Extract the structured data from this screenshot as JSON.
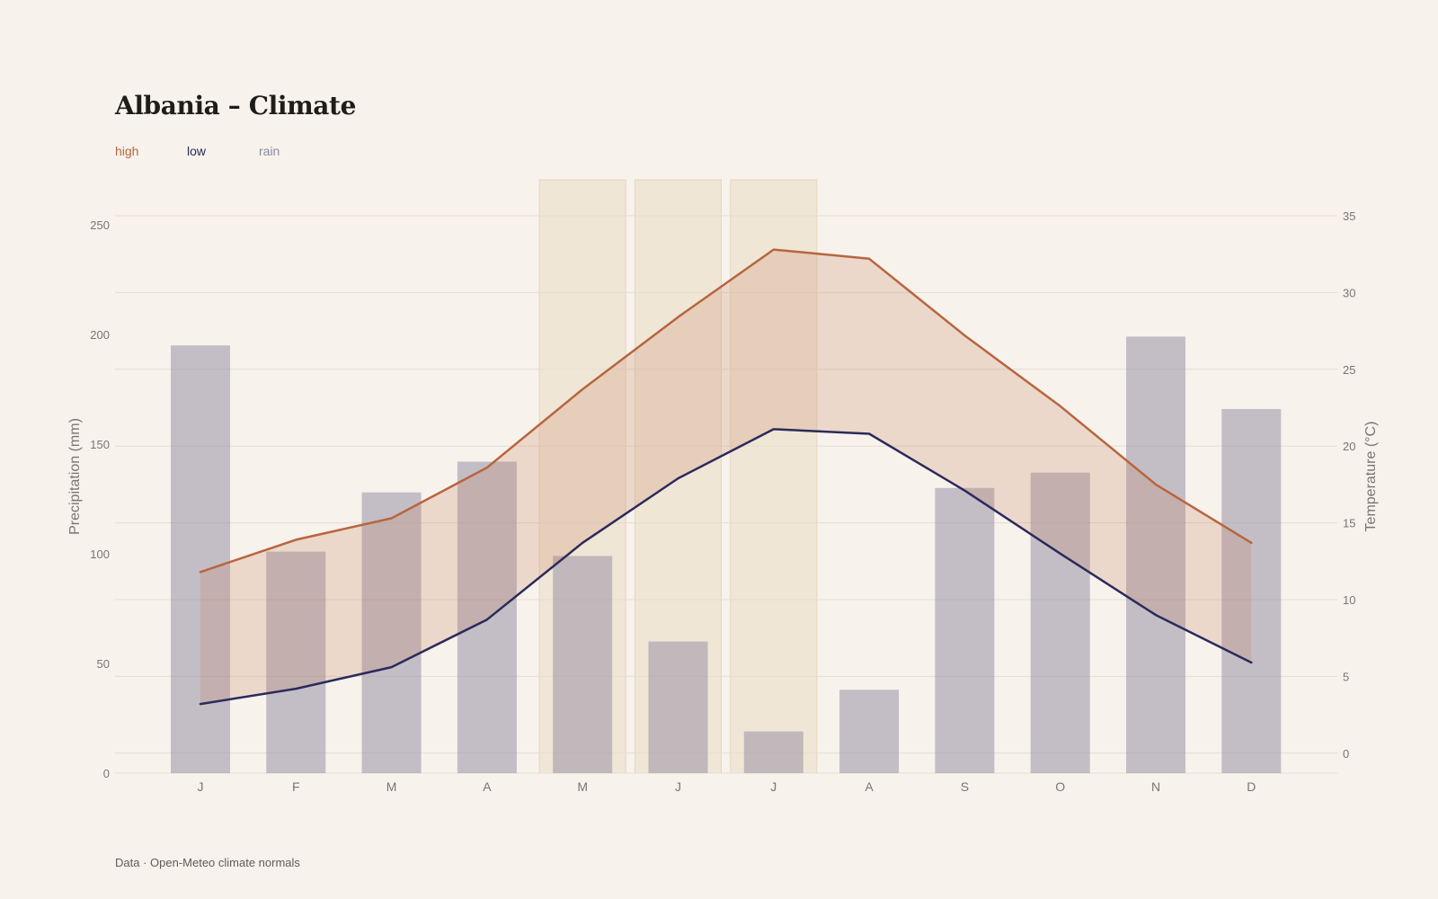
{
  "title": "Albania – Climate",
  "legend": {
    "high": "high",
    "low": "low",
    "rain": "rain"
  },
  "source": "Data · Open-Meteo climate normals",
  "colors": {
    "background": "#f7f2ec",
    "high_line": "#b8653f",
    "low_line": "#2c2a5b",
    "band_fill": "#c47a55",
    "rain_bar": "#8f8aa0",
    "summer_highlight": "#e6d6bd",
    "grid": "#e4ddd2"
  },
  "chart_data": {
    "type": "bar+line",
    "categories": [
      "J",
      "F",
      "M",
      "A",
      "M",
      "J",
      "J",
      "A",
      "S",
      "O",
      "N",
      "D"
    ],
    "highlighted_months": [
      4,
      5,
      6
    ],
    "precipitation": {
      "name": "rain",
      "axis": "left",
      "ylabel": "Precipitation (mm)",
      "ylim": [
        0,
        250
      ],
      "ticks": [
        0,
        50,
        100,
        150,
        200,
        250
      ],
      "values": [
        195,
        101,
        128,
        142,
        99,
        60,
        19,
        38,
        130,
        137,
        199,
        166
      ]
    },
    "temperature": {
      "axis": "right",
      "ylabel": "Temperature (°C)",
      "ylim": [
        -1.3,
        35
      ],
      "ticks": [
        0,
        5,
        10,
        15,
        20,
        25,
        30,
        35
      ],
      "series": [
        {
          "name": "high",
          "values": [
            11.8,
            13.9,
            15.3,
            18.6,
            23.7,
            28.4,
            32.8,
            32.2,
            27.2,
            22.6,
            17.5,
            13.7
          ]
        },
        {
          "name": "low",
          "values": [
            3.2,
            4.2,
            5.6,
            8.7,
            13.7,
            17.9,
            21.1,
            20.8,
            17.1,
            13.0,
            9.0,
            5.9
          ]
        }
      ]
    },
    "grid": true
  }
}
